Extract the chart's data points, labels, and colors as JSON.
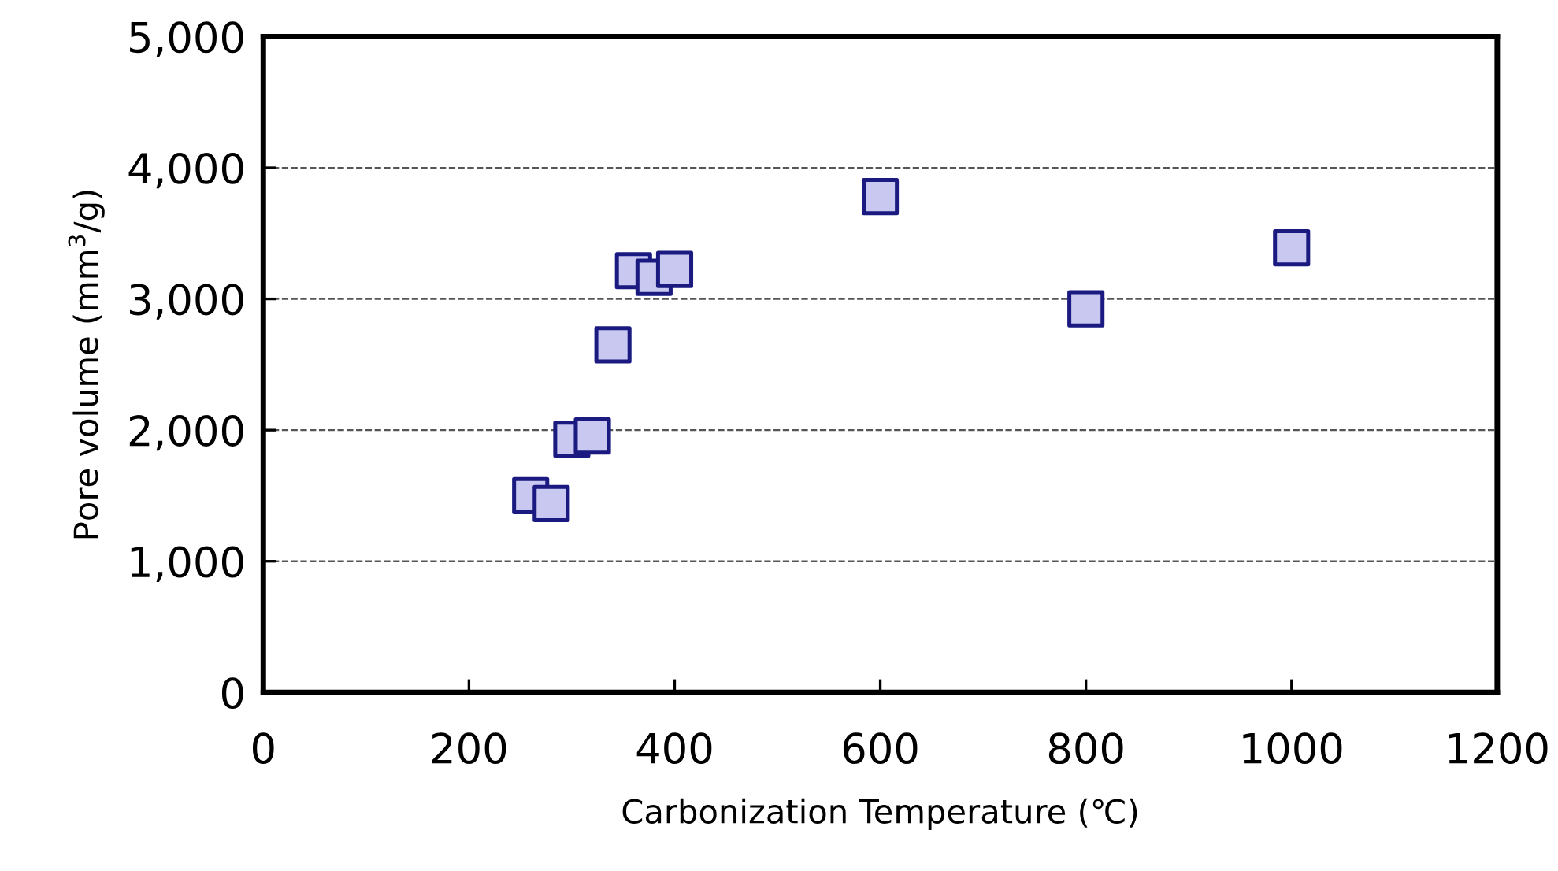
{
  "chart_data": {
    "type": "scatter",
    "xlabel": "Carbonization Temperature (℃)",
    "ylabel": "Pore volume (mm$^{3}$/g)",
    "x": [
      260,
      280,
      300,
      320,
      340,
      360,
      380,
      400,
      600,
      800,
      1000
    ],
    "series": [
      {
        "color": "#c8c8f0",
        "values": [
          1500,
          1440,
          1930,
          1955,
          2650,
          3215,
          3165,
          3225,
          3780,
          2925,
          3390
        ]
      }
    ],
    "xlim": [
      0,
      1200
    ],
    "xticks": [
      0,
      200,
      400,
      600,
      800,
      1000,
      1200
    ],
    "ylim": [
      0,
      5000
    ],
    "yticks": [
      {
        "value": 0,
        "label": "0"
      },
      {
        "value": 1000,
        "label": "1,000"
      },
      {
        "value": 2000,
        "label": "2,000"
      },
      {
        "value": 3000,
        "label": "3,000"
      },
      {
        "value": 4000,
        "label": "4,000"
      },
      {
        "value": 5000,
        "label": "5,000"
      }
    ],
    "grid": "y",
    "marker": "square",
    "line_style": "dashed",
    "legend": false
  }
}
